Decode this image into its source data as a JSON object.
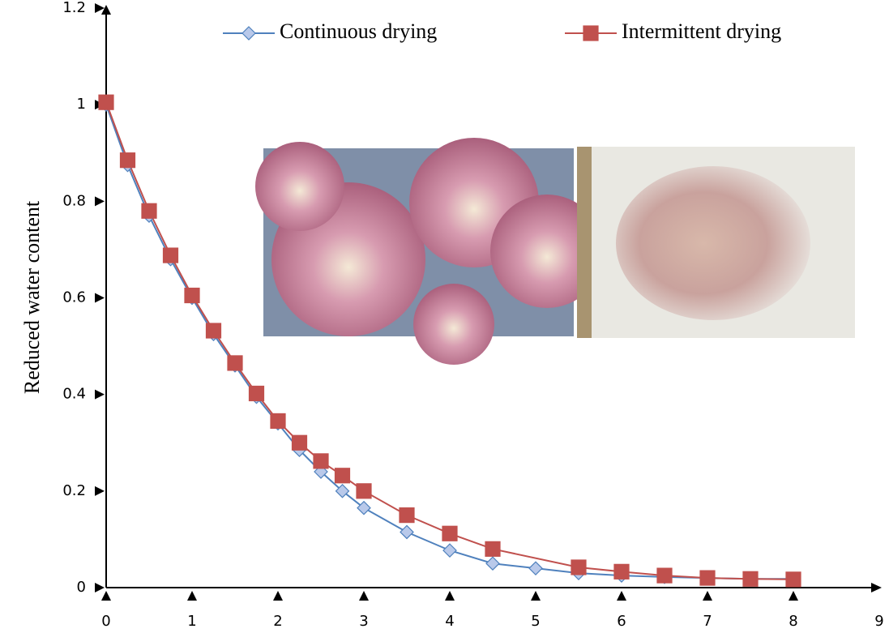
{
  "chart_data": {
    "type": "line",
    "y_label": "Reduced water content",
    "xlim": [
      0,
      9
    ],
    "xticks": [
      0,
      1,
      2,
      3,
      4,
      5,
      6,
      7,
      8,
      9
    ],
    "ylim": [
      0,
      1.2
    ],
    "yticks": [
      0,
      0.2,
      0.4,
      0.6,
      0.8,
      1,
      1.2
    ],
    "legend": "top",
    "series": [
      {
        "name": "Continuous drying",
        "color": "#4f81bd",
        "marker": "diamond",
        "marker_fill": "#b9c9ea",
        "x": [
          0,
          0.25,
          0.5,
          0.75,
          1,
          1.25,
          1.5,
          1.75,
          2,
          2.25,
          2.5,
          2.75,
          3,
          3.5,
          4,
          4.5,
          5,
          5.5,
          6,
          6.5,
          7,
          7.5,
          8
        ],
        "values": [
          1.0,
          0.875,
          0.77,
          0.68,
          0.6,
          0.525,
          0.46,
          0.395,
          0.34,
          0.285,
          0.24,
          0.2,
          0.165,
          0.115,
          0.077,
          0.05,
          0.04,
          0.03,
          0.025,
          0.022,
          0.02,
          0.018,
          0.018
        ]
      },
      {
        "name": "Intermittent drying",
        "color": "#c0504d",
        "marker": "square",
        "marker_fill": "#c0504d",
        "x": [
          0,
          0.25,
          0.5,
          0.75,
          1,
          1.25,
          1.5,
          1.75,
          2,
          2.25,
          2.5,
          2.75,
          3,
          3.5,
          4,
          4.5,
          5.5,
          6,
          6.5,
          7,
          7.5,
          8
        ],
        "values": [
          1.005,
          0.885,
          0.78,
          0.688,
          0.605,
          0.532,
          0.465,
          0.402,
          0.345,
          0.3,
          0.262,
          0.232,
          0.2,
          0.15,
          0.112,
          0.08,
          0.042,
          0.033,
          0.025,
          0.02,
          0.018,
          0.017
        ]
      }
    ]
  }
}
